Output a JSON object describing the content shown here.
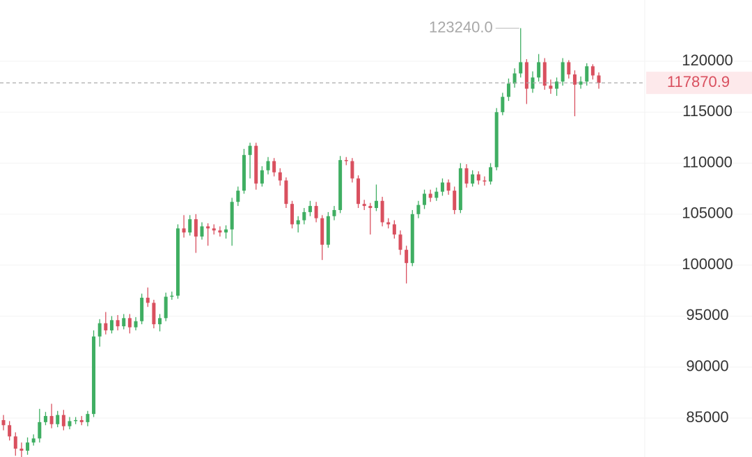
{
  "chart_data": {
    "type": "candlestick",
    "ylim": [
      81180,
      126000
    ],
    "yticks": [
      85000,
      90000,
      95000,
      100000,
      105000,
      110000,
      115000,
      120000
    ],
    "grid": true,
    "up_color": "#3fae62",
    "down_color": "#d9505f",
    "max_price": {
      "value": 123240,
      "label": "123240.0"
    },
    "last_price": {
      "value": 117870.9,
      "label": "117870.9"
    },
    "open": [
      84800,
      84300,
      83200,
      82000,
      81800,
      82600,
      83000,
      84600,
      85200,
      84400,
      85300,
      84200,
      84700,
      84800,
      84600,
      85400,
      93000,
      94300,
      93600,
      94600,
      94000,
      94800,
      93900,
      94500,
      96800,
      96300,
      94200,
      94800,
      96900,
      97000,
      103600,
      103200,
      104500,
      102800,
      103800,
      103600,
      103400,
      103200,
      103500,
      106200,
      107300,
      110800,
      111700,
      108000,
      109300,
      110200,
      109100,
      108300,
      106000,
      104000,
      104400,
      105200,
      105800,
      104600,
      102000,
      104800,
      105400,
      110300,
      110200,
      108500,
      106000,
      105800,
      105600,
      106300,
      104200,
      104000,
      103000,
      101500,
      100200,
      105000,
      105900,
      107000,
      106600,
      107200,
      108100,
      107300,
      105400,
      109500,
      108000,
      108900,
      108300,
      108200,
      109600,
      115000,
      116500,
      117800,
      118800,
      119900,
      117300,
      118400,
      119900,
      117600,
      117300,
      118000,
      119900,
      118700,
      117700,
      118000,
      119500,
      118600
    ],
    "high": [
      85300,
      84700,
      83600,
      82600,
      83100,
      83400,
      85900,
      85600,
      86400,
      85700,
      85800,
      85100,
      85100,
      85200,
      85700,
      93600,
      94700,
      95400,
      95000,
      95100,
      95200,
      95200,
      94900,
      97200,
      97800,
      96600,
      95200,
      97300,
      97400,
      104000,
      104900,
      104900,
      105000,
      104200,
      104100,
      104000,
      103800,
      103900,
      106600,
      107700,
      111400,
      112000,
      112000,
      109700,
      110600,
      110500,
      109500,
      108600,
      106300,
      104800,
      105600,
      106300,
      106200,
      104900,
      105200,
      105800,
      110700,
      110600,
      110500,
      108800,
      106400,
      106100,
      107900,
      106700,
      104600,
      104400,
      103400,
      101900,
      105400,
      106300,
      107400,
      107400,
      107600,
      108500,
      108400,
      107700,
      110000,
      109900,
      109300,
      109200,
      108700,
      110000,
      115400,
      116900,
      118300,
      119300,
      123240,
      120200,
      119000,
      120700,
      120300,
      118200,
      118400,
      120300,
      120100,
      119100,
      118500,
      119800,
      119700,
      118900
    ],
    "low": [
      83800,
      82800,
      81300,
      81100,
      81400,
      82300,
      82600,
      84300,
      84000,
      84100,
      83800,
      83900,
      84400,
      84300,
      84200,
      85100,
      92000,
      93200,
      93300,
      93600,
      93700,
      93300,
      93600,
      94200,
      95900,
      93800,
      93500,
      94500,
      96600,
      96700,
      102700,
      102900,
      101200,
      102500,
      101900,
      103000,
      102800,
      102600,
      101900,
      105800,
      107000,
      108500,
      107400,
      107700,
      108900,
      108700,
      107800,
      105600,
      103600,
      103200,
      104000,
      104800,
      104200,
      100500,
      101700,
      104400,
      105100,
      109800,
      108100,
      105600,
      105400,
      103000,
      105300,
      103800,
      103600,
      102600,
      101000,
      98200,
      99900,
      104600,
      105500,
      106200,
      106300,
      106800,
      106900,
      105000,
      105100,
      107600,
      107700,
      107900,
      107800,
      107900,
      109300,
      114700,
      116100,
      117400,
      118400,
      115800,
      116900,
      118000,
      117200,
      116800,
      116600,
      117600,
      118300,
      114600,
      117300,
      117600,
      118200,
      117300
    ],
    "close": [
      84300,
      83200,
      82000,
      81800,
      82600,
      83000,
      84600,
      85200,
      84400,
      85300,
      84200,
      84700,
      84800,
      84600,
      85400,
      93000,
      94300,
      93600,
      94600,
      94000,
      94800,
      93900,
      94500,
      96800,
      96300,
      94200,
      94800,
      96900,
      97000,
      103600,
      103200,
      104500,
      102800,
      103800,
      103600,
      103400,
      103200,
      103500,
      106200,
      107300,
      110800,
      111700,
      108000,
      109300,
      110200,
      109100,
      108300,
      106000,
      104000,
      104400,
      105200,
      105800,
      104600,
      102000,
      104800,
      105400,
      110300,
      110200,
      108500,
      106000,
      105800,
      105600,
      106300,
      104200,
      104000,
      103000,
      101500,
      100200,
      105000,
      105900,
      107000,
      106600,
      107200,
      108100,
      107300,
      105400,
      109500,
      108000,
      108900,
      108300,
      108200,
      109600,
      115000,
      116500,
      117800,
      118800,
      119900,
      117300,
      118400,
      119900,
      117600,
      117300,
      118000,
      119900,
      118700,
      117700,
      118000,
      119500,
      118600,
      117870.9
    ]
  }
}
